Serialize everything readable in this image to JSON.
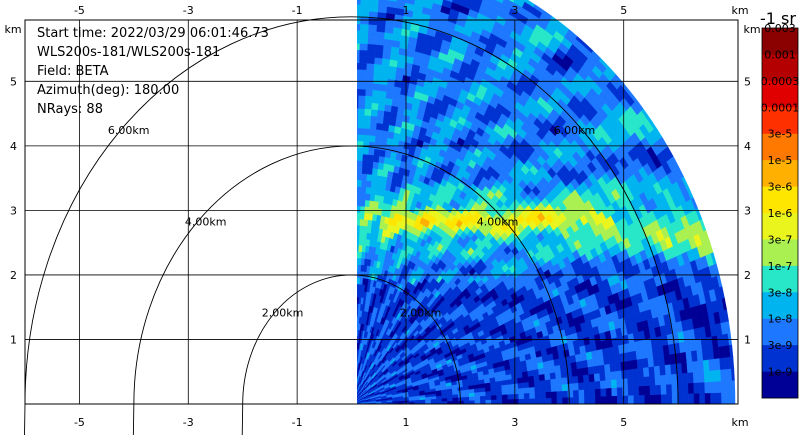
{
  "info": {
    "start_time": "Start time: 2022/03/29 06:01:46.730",
    "station": "WLS200s-181/WLS200s-181",
    "field": "Field: BETA",
    "azimuth": "Azimuth(deg): 180.00",
    "nrays": "NRays: 88"
  },
  "colorbar": {
    "title": "-1 sr",
    "labels": [
      "0.003",
      "0.001",
      "0.0003",
      "0.0001",
      "3e-5",
      "1e-5",
      "3e-6",
      "1e-6",
      "3e-7",
      "1e-7",
      "3e-8",
      "1e-8",
      "3e-9",
      "1e-9"
    ],
    "colors": [
      "#8b0000",
      "#b40000",
      "#e00000",
      "#ff3000",
      "#ff7800",
      "#ffb000",
      "#ffe600",
      "#eaf51e",
      "#aaf050",
      "#28e6c8",
      "#00b4f0",
      "#1e78ff",
      "#0032d2",
      "#000096"
    ]
  },
  "chart_data": {
    "type": "heatmap",
    "title": "",
    "xlabel": "km",
    "ylabel": "km",
    "xlim": [
      -6.0,
      7.1
    ],
    "ylim": [
      0,
      5.95
    ],
    "x_ticks": [
      -5,
      -3,
      -1,
      1,
      3,
      5
    ],
    "y_ticks": [
      1,
      2,
      3,
      4,
      5
    ],
    "x_tick_labels": [
      "-5",
      "-3",
      "-1",
      "1",
      "3",
      "5"
    ],
    "y_tick_labels": [
      "1",
      "2",
      "3",
      "4",
      "5"
    ],
    "grid": true,
    "range_rings": [
      {
        "radius_km": 2,
        "label": "2.00km"
      },
      {
        "radius_km": 4,
        "label": "4.00km"
      },
      {
        "radius_km": 6,
        "label": "6.00km"
      }
    ],
    "sector": {
      "x_min_km": 0.1,
      "max_range_km": 7.05
    }
  }
}
